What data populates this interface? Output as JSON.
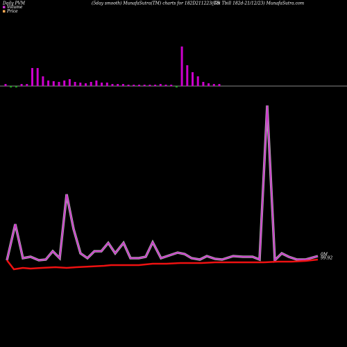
{
  "chart_data": {
    "type": "pvm",
    "title": "Daily PVM",
    "subtitle": "(5day smooth) MunafaSutra(TM) charts for 182D211223_TB",
    "source": "(Goi  Tbill 182d-21/12/23) MunafaSutra.com",
    "volume_label": "0M",
    "price_label": "99.92",
    "bar_values": [
      3,
      -2,
      -2,
      3,
      3,
      26,
      26,
      14,
      8,
      7,
      6,
      8,
      10,
      6,
      5,
      4,
      6,
      8,
      5,
      5,
      3,
      3,
      3,
      2,
      2,
      2,
      2,
      2,
      2,
      3,
      2,
      2,
      -2,
      57,
      30,
      20,
      14,
      6,
      4,
      3,
      3
    ],
    "bar_colors": {
      "up": "#cc00cc",
      "down": "#22aa22"
    },
    "ylim": [
      0,
      250
    ],
    "series": [
      {
        "name": "Volume",
        "color": "#cc33cc",
        "x": [
          10,
          22,
          33,
          44,
          56,
          66,
          76,
          86,
          96,
          106,
          116,
          126,
          136,
          146,
          156,
          166,
          178,
          188,
          200,
          210,
          220,
          232,
          244,
          256,
          266,
          276,
          288,
          298,
          310,
          320,
          336,
          350,
          364,
          374,
          385,
          396,
          406,
          416,
          428,
          440,
          458
        ],
        "values": [
          15,
          67,
          18,
          20,
          15,
          16,
          28,
          18,
          110,
          60,
          25,
          18,
          28,
          28,
          40,
          25,
          40,
          18,
          18,
          20,
          41,
          18,
          22,
          26,
          24,
          18,
          16,
          21,
          17,
          16,
          21,
          20,
          20,
          16,
          238,
          15,
          25,
          20,
          16,
          16,
          21
        ]
      },
      {
        "name": "Price",
        "color": "#ee1111",
        "x": [
          10,
          20,
          33,
          44,
          60,
          80,
          96,
          110,
          130,
          150,
          160,
          200,
          220,
          240,
          260,
          290,
          310,
          340,
          360,
          380,
          400,
          420,
          440,
          458
        ],
        "values": [
          15,
          2,
          4,
          3,
          4,
          5,
          4,
          5,
          6,
          7,
          8,
          8,
          10,
          10,
          11,
          11,
          12,
          12,
          12,
          12,
          13,
          13,
          14,
          16
        ]
      }
    ]
  }
}
